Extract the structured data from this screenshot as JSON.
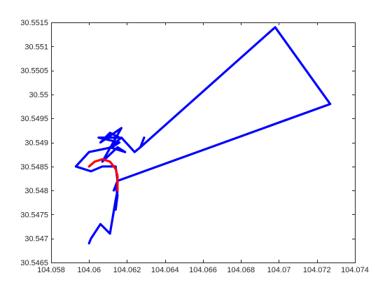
{
  "chart_data": {
    "type": "line",
    "title": "",
    "xlabel": "",
    "ylabel": "",
    "xlim": [
      104.058,
      104.074
    ],
    "ylim": [
      30.5465,
      30.5515
    ],
    "x_ticks": [
      104.058,
      104.06,
      104.062,
      104.064,
      104.066,
      104.068,
      104.07,
      104.072,
      104.074
    ],
    "x_tick_labels": [
      "104.058",
      "104.06",
      "104.062",
      "104.064",
      "104.066",
      "104.068",
      "104.07",
      "104.072",
      "104.074"
    ],
    "y_ticks": [
      30.5465,
      30.547,
      30.5475,
      30.548,
      30.5485,
      30.549,
      30.5495,
      30.55,
      30.5505,
      30.551,
      30.5515
    ],
    "y_tick_labels": [
      "30.5465",
      "30.547",
      "30.5475",
      "30.548",
      "30.5485",
      "30.549",
      "30.5495",
      "30.55",
      "30.5505",
      "30.551",
      "30.5515"
    ],
    "grid": false,
    "legend": "none",
    "series": [
      {
        "color": "#0000ff",
        "x": [
          104.06,
          104.0601,
          104.0606,
          104.0611,
          104.0614,
          104.0615,
          104.0614,
          104.0615,
          104.0614,
          104.0613,
          104.0615,
          104.0614,
          104.0607,
          104.0601,
          104.0593,
          104.06,
          104.0612,
          104.0616,
          104.0605,
          104.0616,
          104.0611,
          104.0606,
          104.0617,
          104.0607,
          104.0615,
          104.0619,
          104.0611,
          104.0617,
          104.0624,
          104.0627,
          104.0629,
          104.0627,
          104.0698,
          104.0727,
          104.0615
        ],
        "y": [
          30.5469,
          30.547,
          30.5473,
          30.5471,
          30.5478,
          30.548,
          30.5476,
          30.5479,
          30.5481,
          30.548,
          30.5482,
          30.5485,
          30.5485,
          30.5484,
          30.5485,
          30.5488,
          30.5489,
          30.549,
          30.5491,
          30.5491,
          30.5492,
          30.549,
          30.5493,
          30.5486,
          30.5489,
          30.5488,
          30.5489,
          30.5491,
          30.5488,
          30.5489,
          30.5491,
          30.5489,
          30.5514,
          30.5498,
          30.5482
        ]
      },
      {
        "color": "#ff0000",
        "x": [
          104.06,
          104.0603,
          104.0607,
          104.0611,
          104.0614,
          104.0615,
          104.0615
        ],
        "y": [
          30.5485,
          30.5486,
          30.54865,
          30.5486,
          30.54845,
          30.5483,
          30.548
        ]
      }
    ]
  }
}
